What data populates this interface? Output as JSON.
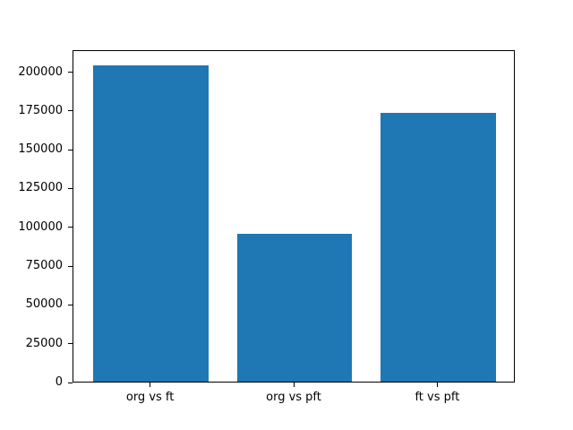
{
  "chart_data": {
    "type": "bar",
    "title": "",
    "xlabel": "",
    "ylabel": "",
    "categories": [
      "org vs ft",
      "org vs pft",
      "ft vs pft"
    ],
    "values": [
      204000,
      95000,
      173000
    ],
    "yticks": [
      0,
      25000,
      50000,
      75000,
      100000,
      125000,
      150000,
      175000,
      200000
    ],
    "ytick_labels": [
      "0",
      "25000",
      "50000",
      "75000",
      "100000",
      "125000",
      "150000",
      "175000",
      "200000"
    ],
    "ylim": [
      0,
      214200
    ],
    "xlim": [
      -0.54,
      2.54
    ],
    "bar_width": 0.8,
    "bar_color": "#1f77b4",
    "spine_color": "#000000",
    "text_color": "#000000",
    "background_color": "#ffffff",
    "grid": false,
    "legend": "none"
  }
}
